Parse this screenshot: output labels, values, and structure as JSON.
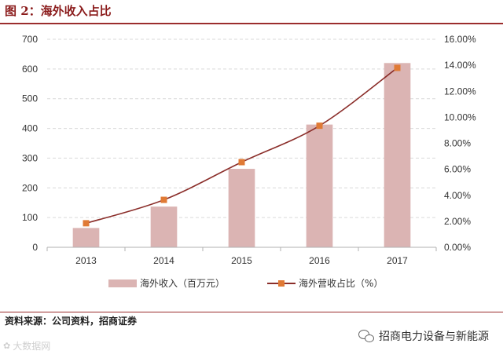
{
  "figure": {
    "title": "图 2：海外收入占比",
    "source": "资料来源：公司资料，招商证券",
    "wechat_label": "招商电力设备与新能源",
    "watermark_text": "大数据网"
  },
  "colors": {
    "bar": "#dbb4b3",
    "line": "#8b2e2a",
    "marker": "#e07a35",
    "grid": "#d9d9d9",
    "rule": "#9b2d2d",
    "title": "#8b1c1c"
  },
  "icons": {
    "wechat": "wechat-icon",
    "watermark": "watermark-logo-icon"
  },
  "chart_data": {
    "type": "bar",
    "title": "",
    "xlabel": "",
    "ylabel": "",
    "categories": [
      "2013",
      "2014",
      "2015",
      "2016",
      "2017"
    ],
    "series": [
      {
        "name": "海外收入（百万元）",
        "type": "bar",
        "axis": "left",
        "values": [
          65,
          137,
          264,
          413,
          620
        ]
      },
      {
        "name": "海外营收占比（%）",
        "type": "line",
        "axis": "right",
        "values": [
          1.85,
          3.65,
          6.55,
          9.35,
          13.8
        ]
      }
    ],
    "ylim": [
      0,
      700
    ],
    "yticks": [
      "0",
      "100",
      "200",
      "300",
      "400",
      "500",
      "600",
      "700"
    ],
    "y2lim": [
      0,
      16
    ],
    "y2ticks": [
      "0.00%",
      "2.00%",
      "4.00%",
      "6.00%",
      "8.00%",
      "10.00%",
      "12.00%",
      "14.00%",
      "16.00%"
    ],
    "grid": true,
    "legend_position": "bottom"
  }
}
